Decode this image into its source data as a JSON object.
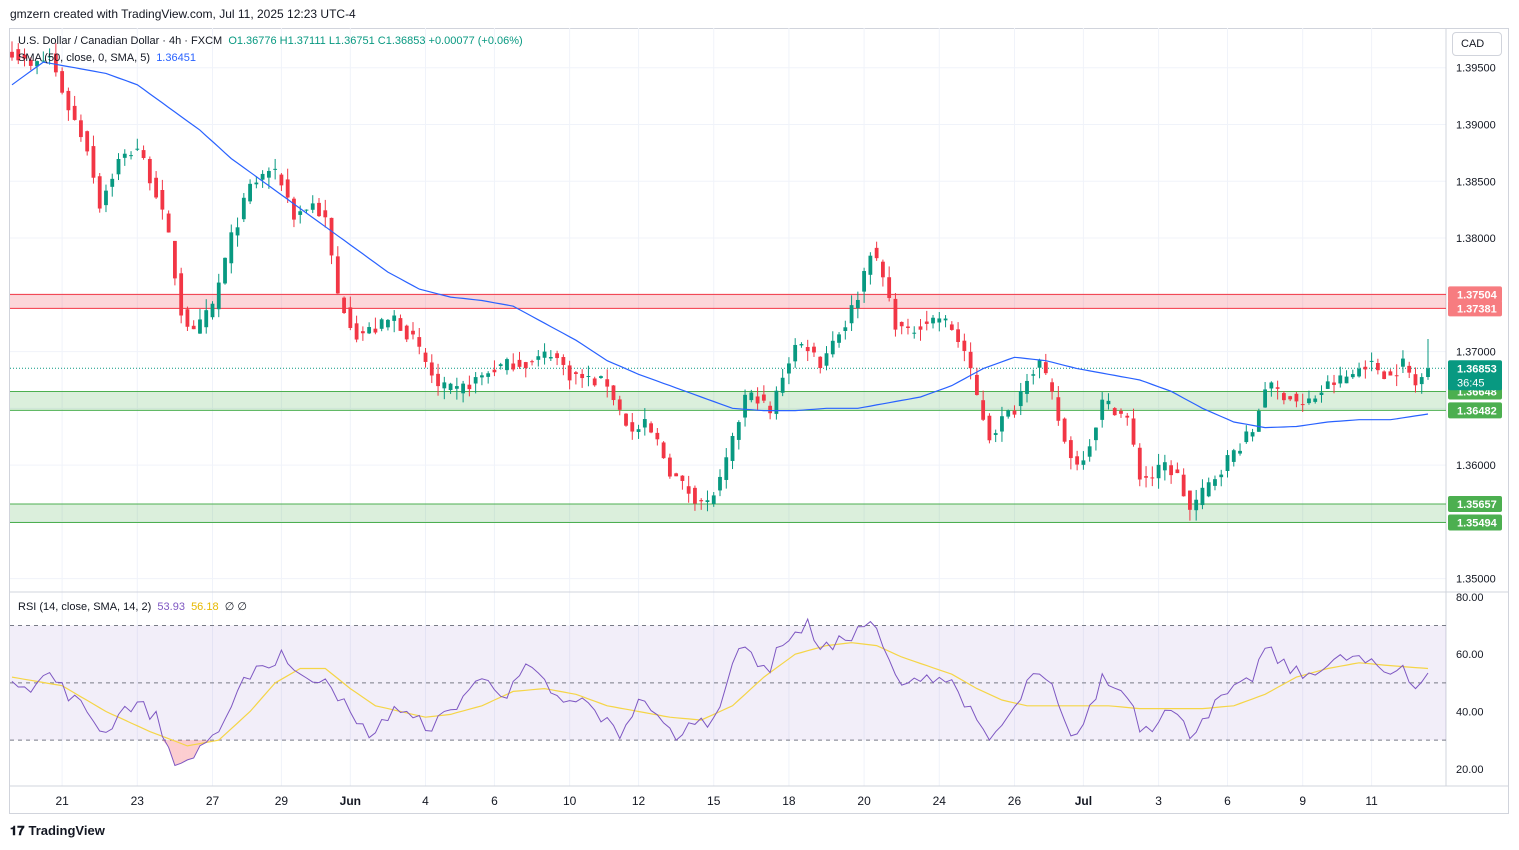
{
  "header": {
    "attribution": "gmzern created with TradingView.com, Jul 11, 2025 12:23 UTC-4"
  },
  "legend": {
    "symbol": "U.S. Dollar / Canadian Dollar · 4h · FXCM",
    "ohlc": "O1.36776  H1.37111  L1.36751  C1.36853  +0.00077 (+0.06%)",
    "sma_label": "SMA (50, close, 0, SMA, 5)",
    "sma_value": "1.36451",
    "rsi_label": "RSI (14, close, SMA, 14, 2)",
    "rsi_value": "53.93",
    "rsi_sma_value": "56.18",
    "rsi_extra": "∅  ∅"
  },
  "currency_button": "CAD",
  "footer": {
    "brand": "TradingView",
    "logo_glyph": "𝟏𝟕"
  },
  "colors": {
    "up": "#089981",
    "down": "#f23645",
    "sma": "#2962ff",
    "rsi": "#7e57c2",
    "rsi_sma": "#f5d547",
    "resistance_zone": "#f23645",
    "support_zone": "#4caf50"
  },
  "chart_data": [
    {
      "type": "candlestick",
      "title": "U.S. Dollar / Canadian Dollar · 4h · FXCM",
      "x_ticks": [
        "21",
        "23",
        "27",
        "29",
        "Jun",
        "4",
        "6",
        "10",
        "12",
        "15",
        "18",
        "20",
        "24",
        "26",
        "Jul",
        "3",
        "6",
        "9",
        "11"
      ],
      "y_ticks": [
        "1.35000",
        "1.35500",
        "1.36000",
        "1.36500",
        "1.37000",
        "1.37500",
        "1.38000",
        "1.38500",
        "1.39000",
        "1.39500"
      ],
      "ylim": [
        1.349,
        1.3985
      ],
      "last_price": "1.36853",
      "countdown": "36:45",
      "zones": [
        {
          "name": "resistance",
          "from": 1.37381,
          "to": 1.37504,
          "label_top": "1.37504",
          "label_bottom": "1.37381"
        },
        {
          "name": "support-1",
          "from": 1.36482,
          "to": 1.36648,
          "label_top": "1.36648",
          "label_bottom": "1.36482"
        },
        {
          "name": "support-2",
          "from": 1.35494,
          "to": 1.35657,
          "label_top": "1.35657",
          "label_bottom": "1.35494"
        }
      ],
      "close_anchors": [
        [
          0,
          1.3965
        ],
        [
          3,
          1.395
        ],
        [
          6,
          1.396
        ],
        [
          9,
          1.3915
        ],
        [
          12,
          1.388
        ],
        [
          14,
          1.383
        ],
        [
          17,
          1.3868
        ],
        [
          20,
          1.388
        ],
        [
          23,
          1.384
        ],
        [
          25,
          1.38
        ],
        [
          27,
          1.3735
        ],
        [
          29,
          1.3715
        ],
        [
          32,
          1.374
        ],
        [
          35,
          1.38
        ],
        [
          38,
          1.3845
        ],
        [
          41,
          1.386
        ],
        [
          43,
          1.385
        ],
        [
          45,
          1.382
        ],
        [
          48,
          1.383
        ],
        [
          50,
          1.3815
        ],
        [
          52,
          1.375
        ],
        [
          55,
          1.3715
        ],
        [
          58,
          1.372
        ],
        [
          61,
          1.373
        ],
        [
          64,
          1.371
        ],
        [
          66,
          1.369
        ],
        [
          68,
          1.3668
        ],
        [
          71,
          1.3665
        ],
        [
          74,
          1.3675
        ],
        [
          77,
          1.3685
        ],
        [
          80,
          1.369
        ],
        [
          83,
          1.369
        ],
        [
          86,
          1.37
        ],
        [
          89,
          1.368
        ],
        [
          92,
          1.3675
        ],
        [
          95,
          1.3672
        ],
        [
          97,
          1.3648
        ],
        [
          99,
          1.3628
        ],
        [
          101,
          1.3635
        ],
        [
          103,
          1.362
        ],
        [
          105,
          1.3595
        ],
        [
          107,
          1.3582
        ],
        [
          109,
          1.3572
        ],
        [
          111,
          1.3566
        ],
        [
          113,
          1.3585
        ],
        [
          115,
          1.362
        ],
        [
          117,
          1.366
        ],
        [
          119,
          1.366
        ],
        [
          121,
          1.3645
        ],
        [
          123,
          1.368
        ],
        [
          125,
          1.3705
        ],
        [
          127,
          1.3705
        ],
        [
          129,
          1.369
        ],
        [
          131,
          1.371
        ],
        [
          133,
          1.3725
        ],
        [
          135,
          1.375
        ],
        [
          137,
          1.379
        ],
        [
          139,
          1.3765
        ],
        [
          141,
          1.3725
        ],
        [
          143,
          1.3715
        ],
        [
          145,
          1.3725
        ],
        [
          148,
          1.373
        ],
        [
          150,
          1.372
        ],
        [
          152,
          1.37
        ],
        [
          154,
          1.366
        ],
        [
          156,
          1.3625
        ],
        [
          158,
          1.364
        ],
        [
          160,
          1.365
        ],
        [
          162,
          1.368
        ],
        [
          164,
          1.369
        ],
        [
          166,
          1.366
        ],
        [
          168,
          1.362
        ],
        [
          170,
          1.36
        ],
        [
          172,
          1.362
        ],
        [
          174,
          1.3655
        ],
        [
          176,
          1.365
        ],
        [
          178,
          1.364
        ],
        [
          180,
          1.359
        ],
        [
          182,
          1.359
        ],
        [
          184,
          1.36
        ],
        [
          186,
          1.359
        ],
        [
          188,
          1.356
        ],
        [
          190,
          1.3575
        ],
        [
          192,
          1.359
        ],
        [
          194,
          1.3605
        ],
        [
          196,
          1.3618
        ],
        [
          198,
          1.363
        ],
        [
          200,
          1.367
        ],
        [
          202,
          1.3665
        ],
        [
          204,
          1.366
        ],
        [
          206,
          1.3652
        ],
        [
          208,
          1.366
        ],
        [
          210,
          1.367
        ],
        [
          212,
          1.3675
        ],
        [
          214,
          1.368
        ],
        [
          216,
          1.369
        ],
        [
          218,
          1.3685
        ],
        [
          220,
          1.3678
        ],
        [
          222,
          1.369
        ],
        [
          224,
          1.367
        ],
        [
          226,
          1.3685
        ]
      ],
      "sma_anchors": [
        [
          0,
          1.3935
        ],
        [
          5,
          1.3955
        ],
        [
          10,
          1.395
        ],
        [
          15,
          1.3945
        ],
        [
          20,
          1.3935
        ],
        [
          25,
          1.3915
        ],
        [
          30,
          1.3895
        ],
        [
          35,
          1.387
        ],
        [
          40,
          1.385
        ],
        [
          45,
          1.383
        ],
        [
          50,
          1.381
        ],
        [
          55,
          1.379
        ],
        [
          60,
          1.377
        ],
        [
          65,
          1.3755
        ],
        [
          70,
          1.3748
        ],
        [
          75,
          1.3745
        ],
        [
          80,
          1.374
        ],
        [
          85,
          1.3725
        ],
        [
          90,
          1.371
        ],
        [
          95,
          1.3692
        ],
        [
          100,
          1.368
        ],
        [
          105,
          1.367
        ],
        [
          110,
          1.366
        ],
        [
          115,
          1.365
        ],
        [
          120,
          1.3648
        ],
        [
          125,
          1.3648
        ],
        [
          130,
          1.365
        ],
        [
          135,
          1.365
        ],
        [
          140,
          1.3655
        ],
        [
          145,
          1.366
        ],
        [
          150,
          1.367
        ],
        [
          155,
          1.3685
        ],
        [
          160,
          1.3695
        ],
        [
          165,
          1.3692
        ],
        [
          170,
          1.3685
        ],
        [
          175,
          1.368
        ],
        [
          180,
          1.3675
        ],
        [
          185,
          1.3665
        ],
        [
          190,
          1.365
        ],
        [
          195,
          1.3638
        ],
        [
          200,
          1.3633
        ],
        [
          205,
          1.3634
        ],
        [
          210,
          1.3638
        ],
        [
          215,
          1.364
        ],
        [
          220,
          1.364
        ],
        [
          226,
          1.3645
        ]
      ],
      "ohlc_last": {
        "open": 1.36776,
        "high": 1.37111,
        "low": 1.36751,
        "close": 1.36853
      }
    },
    {
      "type": "line",
      "title": "RSI (14, close, SMA, 14, 2)",
      "y_ticks": [
        "20.00",
        "40.00",
        "60.00",
        "80.00"
      ],
      "ylim": [
        14,
        81
      ],
      "levels": [
        70,
        50,
        30
      ],
      "series": [
        {
          "name": "RSI",
          "anchors": [
            [
              0,
              52
            ],
            [
              3,
              49
            ],
            [
              6,
              53
            ],
            [
              9,
              46
            ],
            [
              12,
              40
            ],
            [
              15,
              32
            ],
            [
              17,
              40
            ],
            [
              20,
              43
            ],
            [
              23,
              38
            ],
            [
              25,
              27
            ],
            [
              27,
              20
            ],
            [
              29,
              25
            ],
            [
              31,
              30
            ],
            [
              34,
              35
            ],
            [
              37,
              50
            ],
            [
              39,
              57
            ],
            [
              41,
              55
            ],
            [
              43,
              61
            ],
            [
              45,
              55
            ],
            [
              47,
              50
            ],
            [
              50,
              53
            ],
            [
              52,
              46
            ],
            [
              55,
              35
            ],
            [
              58,
              32
            ],
            [
              61,
              42
            ],
            [
              64,
              37
            ],
            [
              67,
              35
            ],
            [
              70,
              40
            ],
            [
              73,
              48
            ],
            [
              76,
              52
            ],
            [
              79,
              45
            ],
            [
              82,
              55
            ],
            [
              85,
              50
            ],
            [
              88,
              42
            ],
            [
              91,
              44
            ],
            [
              94,
              38
            ],
            [
              97,
              32
            ],
            [
              99,
              40
            ],
            [
              101,
              45
            ],
            [
              103,
              37
            ],
            [
              105,
              33
            ],
            [
              107,
              31
            ],
            [
              109,
              38
            ],
            [
              111,
              35
            ],
            [
              113,
              44
            ],
            [
              115,
              57
            ],
            [
              117,
              62
            ],
            [
              119,
              58
            ],
            [
              121,
              55
            ],
            [
              123,
              65
            ],
            [
              125,
              67
            ],
            [
              127,
              70
            ],
            [
              129,
              63
            ],
            [
              131,
              62
            ],
            [
              133,
              66
            ],
            [
              135,
              68
            ],
            [
              137,
              72
            ],
            [
              139,
              62
            ],
            [
              141,
              52
            ],
            [
              143,
              48
            ],
            [
              145,
              53
            ],
            [
              148,
              52
            ],
            [
              150,
              50
            ],
            [
              152,
              44
            ],
            [
              154,
              35
            ],
            [
              156,
              30
            ],
            [
              158,
              35
            ],
            [
              160,
              40
            ],
            [
              162,
              50
            ],
            [
              164,
              52
            ],
            [
              166,
              48
            ],
            [
              168,
              35
            ],
            [
              170,
              32
            ],
            [
              172,
              40
            ],
            [
              174,
              52
            ],
            [
              176,
              48
            ],
            [
              178,
              47
            ],
            [
              180,
              35
            ],
            [
              182,
              35
            ],
            [
              184,
              42
            ],
            [
              186,
              38
            ],
            [
              188,
              32
            ],
            [
              190,
              38
            ],
            [
              192,
              42
            ],
            [
              194,
              46
            ],
            [
              196,
              48
            ],
            [
              198,
              52
            ],
            [
              200,
              62
            ],
            [
              202,
              58
            ],
            [
              204,
              55
            ],
            [
              206,
              52
            ],
            [
              208,
              55
            ],
            [
              210,
              56
            ],
            [
              212,
              58
            ],
            [
              214,
              59
            ],
            [
              216,
              57
            ],
            [
              218,
              55
            ],
            [
              220,
              53
            ],
            [
              222,
              57
            ],
            [
              224,
              48
            ],
            [
              226,
              54
            ]
          ]
        },
        {
          "name": "RSI-based MA",
          "anchors": [
            [
              0,
              52
            ],
            [
              8,
              49
            ],
            [
              15,
              40
            ],
            [
              22,
              33
            ],
            [
              28,
              28
            ],
            [
              33,
              30
            ],
            [
              38,
              40
            ],
            [
              42,
              50
            ],
            [
              46,
              55
            ],
            [
              50,
              55
            ],
            [
              54,
              48
            ],
            [
              58,
              42
            ],
            [
              62,
              40
            ],
            [
              66,
              38
            ],
            [
              70,
              39
            ],
            [
              75,
              42
            ],
            [
              80,
              47
            ],
            [
              85,
              48
            ],
            [
              90,
              46
            ],
            [
              95,
              42
            ],
            [
              100,
              40
            ],
            [
              105,
              38
            ],
            [
              110,
              37
            ],
            [
              115,
              42
            ],
            [
              120,
              52
            ],
            [
              125,
              60
            ],
            [
              130,
              63
            ],
            [
              134,
              64
            ],
            [
              138,
              63
            ],
            [
              142,
              59
            ],
            [
              146,
              56
            ],
            [
              150,
              53
            ],
            [
              154,
              48
            ],
            [
              158,
              44
            ],
            [
              162,
              42
            ],
            [
              166,
              42
            ],
            [
              170,
              42
            ],
            [
              175,
              42
            ],
            [
              180,
              41
            ],
            [
              185,
              41
            ],
            [
              190,
              41
            ],
            [
              195,
              42
            ],
            [
              200,
              46
            ],
            [
              205,
              52
            ],
            [
              210,
              55
            ],
            [
              215,
              57
            ],
            [
              220,
              56
            ],
            [
              226,
              55
            ]
          ]
        }
      ]
    }
  ]
}
